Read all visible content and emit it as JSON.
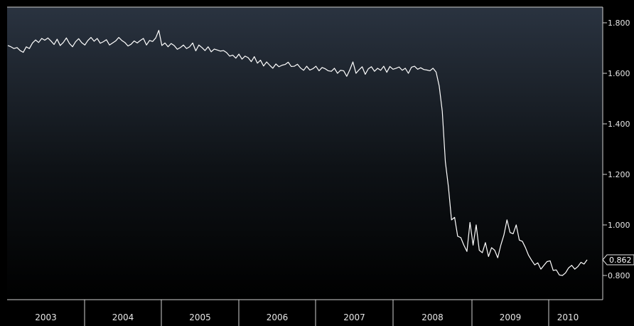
{
  "chart_data": {
    "type": "line",
    "title": "",
    "xlabel": "",
    "ylabel": "",
    "x_range": [
      "2002-09",
      "2010-04"
    ],
    "ylim": [
      0.68,
      1.86
    ],
    "grid": false,
    "legend": "none",
    "colors": {
      "background_top": "#2a3340",
      "background_bottom": "#000000",
      "line": "#ffffff",
      "axis": "#cfcfcf",
      "text": "#e6e6e6"
    },
    "y_ticks": [
      "1.800",
      "1.600",
      "1.400",
      "1.200",
      "1.000",
      "0.800"
    ],
    "y_tick_values": [
      1.8,
      1.6,
      1.4,
      1.2,
      1.0,
      0.8
    ],
    "x_tick_labels": [
      "2003",
      "2004",
      "2005",
      "2006",
      "2007",
      "2008",
      "2009",
      "2010"
    ],
    "last_value_label": "0.862",
    "last_value": 0.862,
    "series": [
      {
        "values": [
          1.71,
          1.705,
          1.698,
          1.702,
          1.69,
          1.683,
          1.705,
          1.698,
          1.72,
          1.732,
          1.722,
          1.738,
          1.731,
          1.74,
          1.728,
          1.714,
          1.735,
          1.71,
          1.722,
          1.74,
          1.718,
          1.705,
          1.725,
          1.737,
          1.721,
          1.712,
          1.73,
          1.742,
          1.727,
          1.738,
          1.719,
          1.725,
          1.733,
          1.712,
          1.72,
          1.728,
          1.742,
          1.73,
          1.722,
          1.708,
          1.715,
          1.728,
          1.72,
          1.73,
          1.738,
          1.712,
          1.73,
          1.726,
          1.74,
          1.77,
          1.71,
          1.72,
          1.705,
          1.718,
          1.71,
          1.695,
          1.702,
          1.712,
          1.698,
          1.705,
          1.72,
          1.689,
          1.712,
          1.702,
          1.69,
          1.705,
          1.685,
          1.696,
          1.692,
          1.688,
          1.69,
          1.682,
          1.668,
          1.672,
          1.66,
          1.676,
          1.656,
          1.668,
          1.662,
          1.646,
          1.666,
          1.64,
          1.652,
          1.629,
          1.645,
          1.632,
          1.62,
          1.637,
          1.626,
          1.632,
          1.635,
          1.644,
          1.627,
          1.628,
          1.636,
          1.621,
          1.612,
          1.628,
          1.613,
          1.618,
          1.628,
          1.61,
          1.623,
          1.618,
          1.61,
          1.608,
          1.62,
          1.6,
          1.612,
          1.61,
          1.588,
          1.614,
          1.645,
          1.6,
          1.614,
          1.626,
          1.596,
          1.618,
          1.626,
          1.608,
          1.62,
          1.612,
          1.628,
          1.604,
          1.627,
          1.616,
          1.62,
          1.625,
          1.612,
          1.62,
          1.6,
          1.624,
          1.628,
          1.616,
          1.622,
          1.615,
          1.613,
          1.61,
          1.62,
          1.605,
          1.55,
          1.45,
          1.25,
          1.15,
          1.02,
          1.03,
          0.955,
          0.95,
          0.92,
          0.895,
          1.01,
          0.92,
          1.0,
          0.9,
          0.89,
          0.93,
          0.875,
          0.91,
          0.9,
          0.87,
          0.92,
          0.96,
          1.02,
          0.97,
          0.965,
          1.0,
          0.94,
          0.935,
          0.91,
          0.88,
          0.86,
          0.842,
          0.85,
          0.825,
          0.84,
          0.855,
          0.858,
          0.82,
          0.822,
          0.802,
          0.8,
          0.81,
          0.83,
          0.84,
          0.825,
          0.835,
          0.852,
          0.845,
          0.862
        ]
      }
    ]
  }
}
